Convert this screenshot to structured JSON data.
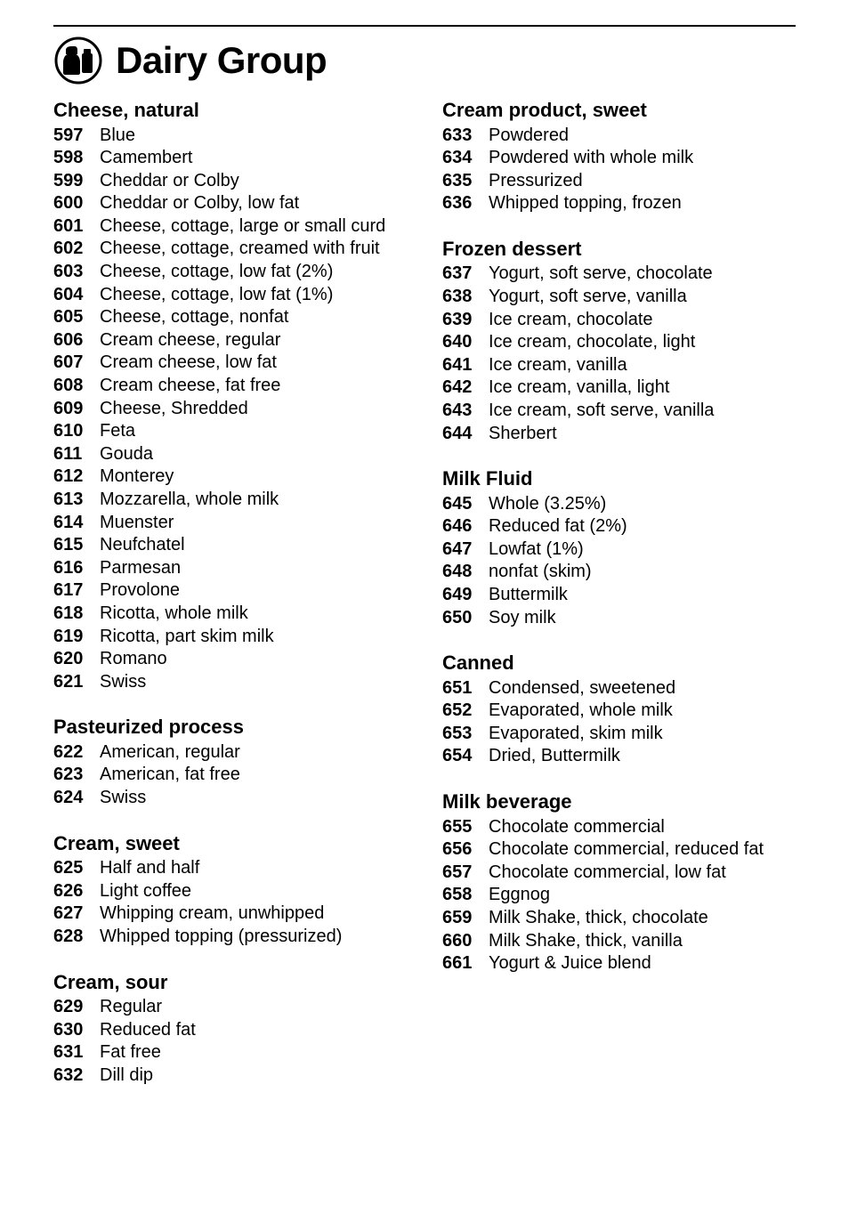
{
  "page": {
    "title": "Dairy Group",
    "colors": {
      "text": "#000000",
      "background": "#ffffff",
      "rule": "#000000"
    },
    "typography": {
      "title_fontsize_pt": 32,
      "section_fontsize_pt": 16,
      "body_fontsize_pt": 15,
      "font_family": "Helvetica Neue"
    }
  },
  "left_column": [
    {
      "title": "Cheese, natural",
      "items": [
        {
          "code": "597",
          "label": "Blue"
        },
        {
          "code": "598",
          "label": "Camembert"
        },
        {
          "code": "599",
          "label": "Cheddar or Colby"
        },
        {
          "code": "600",
          "label": "Cheddar or Colby, low fat"
        },
        {
          "code": "601",
          "label": "Cheese, cottage, large or small curd"
        },
        {
          "code": "602",
          "label": "Cheese, cottage, creamed with fruit"
        },
        {
          "code": "603",
          "label": "Cheese, cottage, low fat (2%)"
        },
        {
          "code": "604",
          "label": "Cheese, cottage, low fat (1%)"
        },
        {
          "code": "605",
          "label": "Cheese, cottage, nonfat"
        },
        {
          "code": "606",
          "label": "Cream cheese, regular"
        },
        {
          "code": "607",
          "label": "Cream cheese, low fat"
        },
        {
          "code": "608",
          "label": "Cream cheese, fat free"
        },
        {
          "code": "609",
          "label": "Cheese, Shredded"
        },
        {
          "code": "610",
          "label": "Feta"
        },
        {
          "code": "611",
          "label": "Gouda"
        },
        {
          "code": "612",
          "label": "Monterey"
        },
        {
          "code": "613",
          "label": "Mozzarella, whole milk"
        },
        {
          "code": "614",
          "label": "Muenster"
        },
        {
          "code": "615",
          "label": "Neufchatel"
        },
        {
          "code": "616",
          "label": "Parmesan"
        },
        {
          "code": "617",
          "label": "Provolone"
        },
        {
          "code": "618",
          "label": "Ricotta, whole milk"
        },
        {
          "code": "619",
          "label": "Ricotta, part skim milk"
        },
        {
          "code": "620",
          "label": "Romano"
        },
        {
          "code": "621",
          "label": "Swiss"
        }
      ]
    },
    {
      "title": "Pasteurized process",
      "items": [
        {
          "code": "622",
          "label": "American, regular"
        },
        {
          "code": "623",
          "label": "American, fat free"
        },
        {
          "code": "624",
          "label": "Swiss"
        }
      ]
    },
    {
      "title": "Cream, sweet",
      "items": [
        {
          "code": "625",
          "label": "Half and half"
        },
        {
          "code": "626",
          "label": "Light coffee"
        },
        {
          "code": "627",
          "label": "Whipping cream, unwhipped"
        },
        {
          "code": "628",
          "label": "Whipped topping (pressurized)"
        }
      ]
    },
    {
      "title": "Cream, sour",
      "items": [
        {
          "code": "629",
          "label": "Regular"
        },
        {
          "code": "630",
          "label": "Reduced fat"
        },
        {
          "code": "631",
          "label": "Fat free"
        },
        {
          "code": "632",
          "label": "Dill dip"
        }
      ]
    }
  ],
  "right_column": [
    {
      "title": "Cream product, sweet",
      "items": [
        {
          "code": "633",
          "label": "Powdered"
        },
        {
          "code": "634",
          "label": "Powdered with whole milk"
        },
        {
          "code": "635",
          "label": "Pressurized"
        },
        {
          "code": "636",
          "label": "Whipped topping, frozen"
        }
      ]
    },
    {
      "title": "Frozen dessert",
      "items": [
        {
          "code": "637",
          "label": "Yogurt, soft serve, chocolate"
        },
        {
          "code": "638",
          "label": "Yogurt, soft serve, vanilla"
        },
        {
          "code": "639",
          "label": "Ice cream, chocolate"
        },
        {
          "code": "640",
          "label": "Ice cream, chocolate, light"
        },
        {
          "code": "641",
          "label": "Ice cream, vanilla"
        },
        {
          "code": "642",
          "label": "Ice cream, vanilla, light"
        },
        {
          "code": "643",
          "label": "Ice cream, soft serve, vanilla"
        },
        {
          "code": "644",
          "label": "Sherbert"
        }
      ]
    },
    {
      "title": "Milk Fluid",
      "items": [
        {
          "code": "645",
          "label": "Whole (3.25%)"
        },
        {
          "code": "646",
          "label": "Reduced fat (2%)"
        },
        {
          "code": "647",
          "label": "Lowfat (1%)"
        },
        {
          "code": "648",
          "label": "nonfat (skim)"
        },
        {
          "code": "649",
          "label": "Buttermilk"
        },
        {
          "code": "650",
          "label": "Soy milk"
        }
      ]
    },
    {
      "title": "Canned",
      "items": [
        {
          "code": "651",
          "label": "Condensed, sweetened"
        },
        {
          "code": "652",
          "label": "Evaporated, whole milk"
        },
        {
          "code": "653",
          "label": "Evaporated, skim milk"
        },
        {
          "code": "654",
          "label": "Dried, Buttermilk"
        }
      ]
    },
    {
      "title": "Milk beverage",
      "items": [
        {
          "code": "655",
          "label": "Chocolate commercial"
        },
        {
          "code": "656",
          "label": "Chocolate commercial, reduced fat"
        },
        {
          "code": "657",
          "label": "Chocolate commercial, low fat"
        },
        {
          "code": "658",
          "label": "Eggnog"
        },
        {
          "code": "659",
          "label": "Milk Shake, thick, chocolate"
        },
        {
          "code": "660",
          "label": "Milk Shake, thick, vanilla"
        },
        {
          "code": "661",
          "label": "Yogurt & Juice blend"
        }
      ]
    }
  ]
}
